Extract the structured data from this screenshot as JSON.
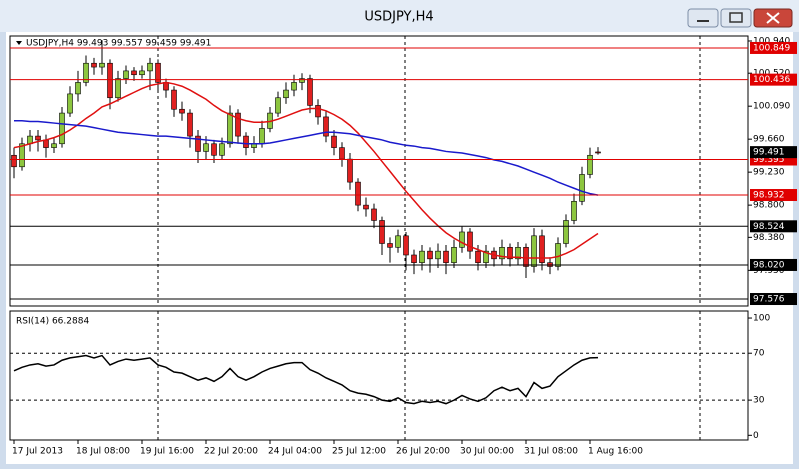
{
  "window": {
    "title": "USDJPY,H4"
  },
  "chart_data": [
    {
      "type": "candlestick",
      "title": "USDJPY,H4  99.493 99.557 99.459 99.491",
      "categories": [
        "17 Jul 2013",
        null,
        null,
        null,
        null,
        null,
        null,
        null,
        "18 Jul 08:00",
        null,
        null,
        null,
        null,
        null,
        null,
        null,
        "19 Jul 16:00",
        null,
        null,
        null,
        null,
        null,
        null,
        null,
        "22 Jul 20:00",
        null,
        null,
        null,
        null,
        null,
        null,
        null,
        "24 Jul 04:00",
        null,
        null,
        null,
        null,
        null,
        null,
        null,
        "25 Jul 12:00",
        null,
        null,
        null,
        null,
        null,
        null,
        null,
        "26 Jul 20:00",
        null,
        null,
        null,
        null,
        null,
        null,
        null,
        "30 Jul 00:00",
        null,
        null,
        null,
        null,
        null,
        null,
        null,
        "31 Jul 08:00",
        null,
        null,
        null,
        null,
        null,
        null,
        null,
        "1 Aug 16:00",
        null
      ],
      "ohlc": [
        [
          99.45,
          99.55,
          99.15,
          99.3
        ],
        [
          99.3,
          99.68,
          99.25,
          99.6
        ],
        [
          99.6,
          99.78,
          99.5,
          99.7
        ],
        [
          99.7,
          99.78,
          99.5,
          99.65
        ],
        [
          99.65,
          99.72,
          99.42,
          99.55
        ],
        [
          99.55,
          99.68,
          99.48,
          99.6
        ],
        [
          99.6,
          100.08,
          99.55,
          100.0
        ],
        [
          100.0,
          100.35,
          99.95,
          100.25
        ],
        [
          100.25,
          100.55,
          100.15,
          100.4
        ],
        [
          100.4,
          100.75,
          100.35,
          100.65
        ],
        [
          100.65,
          100.72,
          100.5,
          100.6
        ],
        [
          100.6,
          100.95,
          100.5,
          100.65
        ],
        [
          100.65,
          100.7,
          100.05,
          100.2
        ],
        [
          100.2,
          100.55,
          100.15,
          100.45
        ],
        [
          100.45,
          100.62,
          100.38,
          100.55
        ],
        [
          100.55,
          100.6,
          100.42,
          100.5
        ],
        [
          100.5,
          100.62,
          100.45,
          100.55
        ],
        [
          100.55,
          100.72,
          100.3,
          100.65
        ],
        [
          100.65,
          100.7,
          100.3,
          100.4
        ],
        [
          100.4,
          100.45,
          100.2,
          100.3
        ],
        [
          100.3,
          100.35,
          99.95,
          100.05
        ],
        [
          100.05,
          100.15,
          99.9,
          100.0
        ],
        [
          100.0,
          100.05,
          99.55,
          99.7
        ],
        [
          99.7,
          99.78,
          99.35,
          99.5
        ],
        [
          99.5,
          99.7,
          99.4,
          99.6
        ],
        [
          99.6,
          99.65,
          99.35,
          99.45
        ],
        [
          99.45,
          99.68,
          99.4,
          99.6
        ],
        [
          99.6,
          100.1,
          99.55,
          100.0
        ],
        [
          100.0,
          100.05,
          99.6,
          99.7
        ],
        [
          99.7,
          99.75,
          99.45,
          99.55
        ],
        [
          99.55,
          99.7,
          99.48,
          99.6
        ],
        [
          99.6,
          99.9,
          99.55,
          99.8
        ],
        [
          99.8,
          100.08,
          99.75,
          100.0
        ],
        [
          100.0,
          100.28,
          99.95,
          100.2
        ],
        [
          100.2,
          100.4,
          100.12,
          100.3
        ],
        [
          100.3,
          100.5,
          100.22,
          100.4
        ],
        [
          100.4,
          100.52,
          100.3,
          100.45
        ],
        [
          100.45,
          100.5,
          100.0,
          100.1
        ],
        [
          100.1,
          100.18,
          99.85,
          99.95
        ],
        [
          99.95,
          100.02,
          99.62,
          99.7
        ],
        [
          99.7,
          99.78,
          99.45,
          99.55
        ],
        [
          99.55,
          99.62,
          99.3,
          99.4
        ],
        [
          99.4,
          99.48,
          99.0,
          99.1
        ],
        [
          99.1,
          99.15,
          98.72,
          98.8
        ],
        [
          98.8,
          98.9,
          98.65,
          98.75
        ],
        [
          98.75,
          98.82,
          98.5,
          98.6
        ],
        [
          98.6,
          98.65,
          98.15,
          98.3
        ],
        [
          98.3,
          98.38,
          98.05,
          98.25
        ],
        [
          98.25,
          98.48,
          98.18,
          98.4
        ],
        [
          98.4,
          98.45,
          97.95,
          98.15
        ],
        [
          98.15,
          98.22,
          97.9,
          98.05
        ],
        [
          98.05,
          98.28,
          97.95,
          98.2
        ],
        [
          98.2,
          98.25,
          97.92,
          98.1
        ],
        [
          98.1,
          98.3,
          97.98,
          98.2
        ],
        [
          98.2,
          98.28,
          97.9,
          98.05
        ],
        [
          98.05,
          98.35,
          97.98,
          98.25
        ],
        [
          98.25,
          98.52,
          98.18,
          98.45
        ],
        [
          98.45,
          98.5,
          98.1,
          98.2
        ],
        [
          98.2,
          98.28,
          97.95,
          98.05
        ],
        [
          98.05,
          98.28,
          97.98,
          98.2
        ],
        [
          98.2,
          98.25,
          98.0,
          98.1
        ],
        [
          98.1,
          98.35,
          98.02,
          98.25
        ],
        [
          98.25,
          98.3,
          98.0,
          98.1
        ],
        [
          98.1,
          98.32,
          98.02,
          98.25
        ],
        [
          98.25,
          98.3,
          97.85,
          98.0
        ],
        [
          98.0,
          98.5,
          97.92,
          98.4
        ],
        [
          98.4,
          98.48,
          97.95,
          98.05
        ],
        [
          98.05,
          98.12,
          97.9,
          98.0
        ],
        [
          98.0,
          98.38,
          97.95,
          98.3
        ],
        [
          98.3,
          98.68,
          98.25,
          98.6
        ],
        [
          98.6,
          98.95,
          98.55,
          98.85
        ],
        [
          98.85,
          99.3,
          98.8,
          99.2
        ],
        [
          99.2,
          99.55,
          99.15,
          99.45
        ],
        [
          99.493,
          99.557,
          99.459,
          99.491
        ]
      ],
      "up_color": "#8dc63f",
      "down_color": "#e02020",
      "series": [
        {
          "color": "#e01010",
          "values": [
            99.55,
            99.57,
            99.6,
            99.63,
            99.65,
            99.68,
            99.72,
            99.78,
            99.85,
            99.93,
            100.0,
            100.08,
            100.12,
            100.17,
            100.22,
            100.27,
            100.32,
            100.36,
            100.38,
            100.4,
            100.38,
            100.35,
            100.3,
            100.24,
            100.18,
            100.1,
            100.03,
            99.98,
            99.93,
            99.9,
            99.88,
            99.88,
            99.89,
            99.92,
            99.96,
            100.0,
            100.04,
            100.06,
            100.06,
            100.03,
            99.98,
            99.92,
            99.84,
            99.74,
            99.62,
            99.5,
            99.37,
            99.24,
            99.11,
            98.98,
            98.86,
            98.74,
            98.63,
            98.53,
            98.44,
            98.37,
            98.31,
            98.26,
            98.22,
            98.18,
            98.15,
            98.13,
            98.12,
            98.12,
            98.11,
            98.11,
            98.11,
            98.11,
            98.13,
            98.17,
            98.22,
            98.29,
            98.36,
            98.43
          ]
        },
        {
          "color": "#1a1acc",
          "values": [
            99.9,
            99.9,
            99.89,
            99.89,
            99.88,
            99.87,
            99.86,
            99.85,
            99.84,
            99.83,
            99.81,
            99.79,
            99.77,
            99.75,
            99.74,
            99.73,
            99.72,
            99.71,
            99.7,
            99.7,
            99.69,
            99.68,
            99.67,
            99.66,
            99.65,
            99.64,
            99.63,
            99.62,
            99.61,
            99.6,
            99.6,
            99.6,
            99.61,
            99.63,
            99.65,
            99.67,
            99.69,
            99.71,
            99.73,
            99.75,
            99.75,
            99.74,
            99.73,
            99.71,
            99.69,
            99.67,
            99.65,
            99.62,
            99.6,
            99.58,
            99.57,
            99.55,
            99.54,
            99.52,
            99.5,
            99.49,
            99.48,
            99.46,
            99.44,
            99.42,
            99.39,
            99.37,
            99.34,
            99.31,
            99.27,
            99.23,
            99.19,
            99.15,
            99.1,
            99.06,
            99.02,
            98.98,
            98.95,
            98.93
          ]
        }
      ],
      "ylim": [
        97.485,
        101.005
      ],
      "yticks": [
        {
          "value": 100.94,
          "label": "100.940"
        },
        {
          "value": 100.52,
          "label": "100.520"
        },
        {
          "value": 100.09,
          "label": "100.090"
        },
        {
          "value": 99.66,
          "label": "99.660"
        },
        {
          "value": 99.23,
          "label": "99.230"
        },
        {
          "value": 98.8,
          "label": "98.800"
        },
        {
          "value": 98.38,
          "label": "98.380"
        },
        {
          "value": 97.95,
          "label": "97.950"
        }
      ],
      "levels": [
        {
          "value": 100.849,
          "color": "#e00000"
        },
        {
          "value": 100.436,
          "color": "#e00000"
        },
        {
          "value": 99.395,
          "color": "#e00000"
        },
        {
          "value": 98.932,
          "color": "#e00000"
        },
        {
          "value": 98.524,
          "color": "#000000"
        },
        {
          "value": 98.02,
          "label": "98.020",
          "color": "#000000"
        },
        {
          "value": 97.576,
          "color": "#000000"
        }
      ],
      "current": 99.491
    },
    {
      "type": "line",
      "title": "RSI(14) 66.2884",
      "series": [
        {
          "color": "#000000",
          "values": [
            55,
            58,
            60,
            61,
            59,
            60,
            64,
            66,
            67,
            68,
            66,
            68,
            60,
            63,
            65,
            64,
            65,
            66,
            60,
            58,
            54,
            53,
            50,
            47,
            49,
            46,
            50,
            57,
            50,
            47,
            50,
            54,
            57,
            59,
            61,
            62,
            62,
            56,
            53,
            49,
            46,
            43,
            38,
            36,
            35,
            33,
            30,
            29,
            32,
            28,
            27,
            29,
            28,
            29,
            27,
            30,
            34,
            31,
            29,
            32,
            38,
            41,
            38,
            40,
            33,
            45,
            40,
            42,
            50,
            55,
            60,
            64,
            66,
            66.2884
          ]
        }
      ],
      "ylim": [
        -4,
        106
      ],
      "yticks": [
        100,
        70,
        30,
        0
      ],
      "levels": [
        70,
        30
      ]
    }
  ]
}
